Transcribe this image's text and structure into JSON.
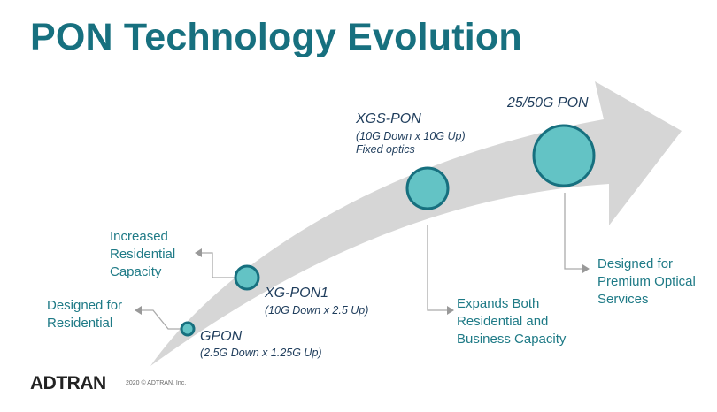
{
  "title": "PON Technology Evolution",
  "colors": {
    "title": "#17707f",
    "arrow": "#d6d6d6",
    "node_fill": "#63c3c5",
    "node_stroke": "#17707f",
    "callout_text": "#1e7a86",
    "generation_text": "#1f3d5c",
    "connector": "#aaaaaa"
  },
  "generations": [
    {
      "name": "GPON",
      "details": [
        "(2.5G Down x 1.25G Up)"
      ]
    },
    {
      "name": "XG-PON1",
      "details": [
        "(10G Down x 2.5 Up)"
      ]
    },
    {
      "name": "XGS-PON",
      "details": [
        "(10G Down x 10G Up)",
        "Fixed optics"
      ]
    },
    {
      "name": "25/50G PON",
      "details": []
    }
  ],
  "callouts": [
    {
      "text": "Designed for\nResidential"
    },
    {
      "text": "Increased\nResidential\nCapacity"
    },
    {
      "text": "Expands Both\nResidential and\nBusiness Capacity"
    },
    {
      "text": "Designed for\nPremium Optical\nServices"
    }
  ],
  "footer": {
    "logo": "ADTRAN",
    "copyright": "2020 © ADTRAN, Inc."
  }
}
